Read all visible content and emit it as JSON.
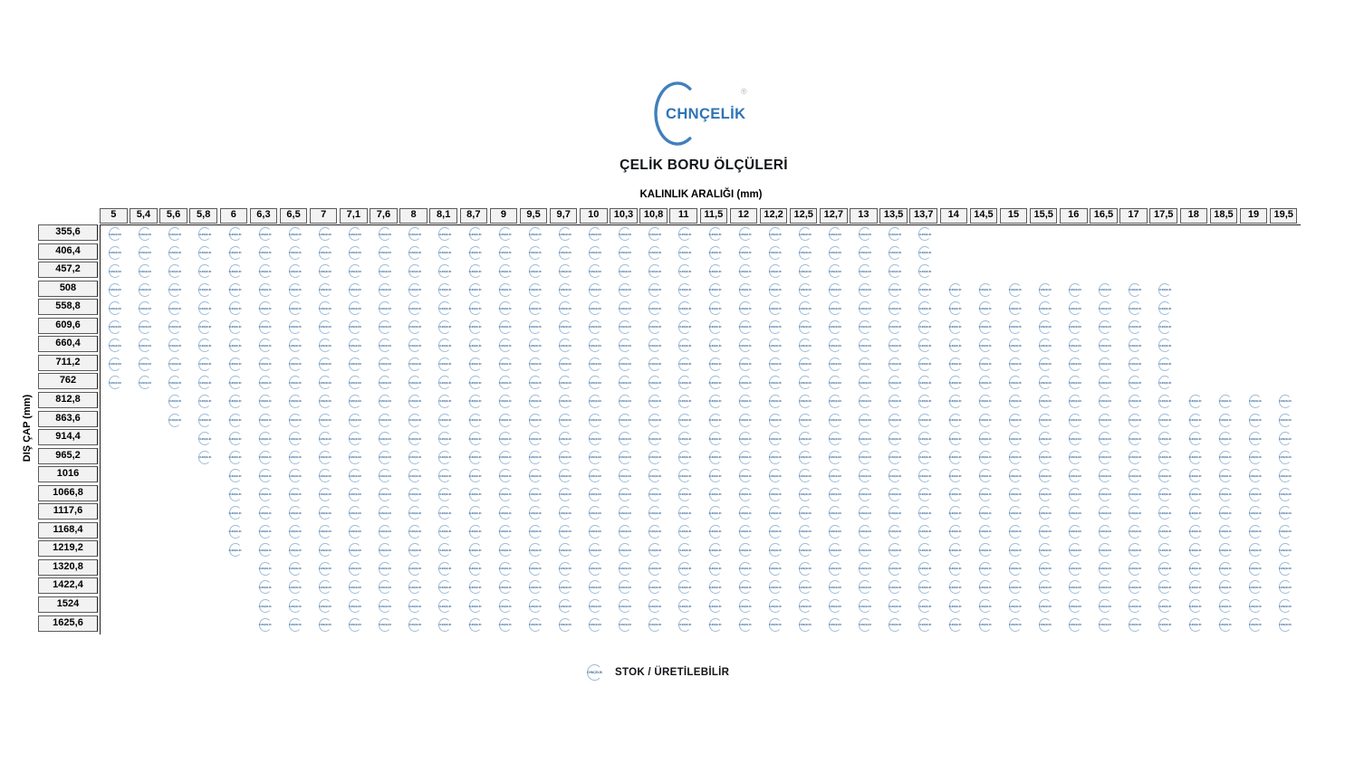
{
  "brand": {
    "logo_text": "CHNÇELİK",
    "registered_mark": "®"
  },
  "page_title": "ÇELİK BORU ÖLÇÜLERİ",
  "axes": {
    "column_axis_label": "KALINLIK ARALIĞI (mm)",
    "row_axis_label": "DIŞ ÇAP (mm)"
  },
  "legend": {
    "marker_text": "CHNÇELİK",
    "label": "STOK / ÜRETİLEBİLİR"
  },
  "colors": {
    "logo_blue": "#2e74b5",
    "arc_blue": "#4180bc",
    "marker_arc_blue": "#9dbbd7",
    "marker_text_blue": "#44729f",
    "header_bg": "#f2f2f2",
    "header_border": "#5a5a5a",
    "title_text": "#111418"
  },
  "chart_data": {
    "type": "table",
    "title": "ÇELİK BORU ÖLÇÜLERİ",
    "xlabel": "KALINLIK ARALIĞI (mm)",
    "ylabel": "DIŞ ÇAP (mm)",
    "legend_note": "marker = STOK / ÜRETİLEBİLİR",
    "columns": [
      "5",
      "5,4",
      "5,6",
      "5,8",
      "6",
      "6,3",
      "6,5",
      "7",
      "7,1",
      "7,6",
      "8",
      "8,1",
      "8,7",
      "9",
      "9,5",
      "9,7",
      "10",
      "10,3",
      "10,8",
      "11",
      "11,5",
      "12",
      "12,2",
      "12,5",
      "12,7",
      "13",
      "13,5",
      "13,7",
      "14",
      "14,5",
      "15",
      "15,5",
      "16",
      "16,5",
      "17",
      "17,5",
      "18",
      "18,5",
      "19",
      "19,5"
    ],
    "rows": [
      {
        "diameter": "355,6",
        "available_from": "5",
        "available_to": "13,7"
      },
      {
        "diameter": "406,4",
        "available_from": "5",
        "available_to": "13,7"
      },
      {
        "diameter": "457,2",
        "available_from": "5",
        "available_to": "13,7"
      },
      {
        "diameter": "508",
        "available_from": "5",
        "available_to": "17,5"
      },
      {
        "diameter": "558,8",
        "available_from": "5",
        "available_to": "17,5"
      },
      {
        "diameter": "609,6",
        "available_from": "5",
        "available_to": "17,5"
      },
      {
        "diameter": "660,4",
        "available_from": "5",
        "available_to": "17,5"
      },
      {
        "diameter": "711,2",
        "available_from": "5",
        "available_to": "17,5"
      },
      {
        "diameter": "762",
        "available_from": "5",
        "available_to": "17,5"
      },
      {
        "diameter": "812,8",
        "available_from": "5,6",
        "available_to": "19,5"
      },
      {
        "diameter": "863,6",
        "available_from": "5,6",
        "available_to": "19,5"
      },
      {
        "diameter": "914,4",
        "available_from": "5,8",
        "available_to": "19,5"
      },
      {
        "diameter": "965,2",
        "available_from": "5,8",
        "available_to": "19,5"
      },
      {
        "diameter": "1016",
        "available_from": "6",
        "available_to": "19,5"
      },
      {
        "diameter": "1066,8",
        "available_from": "6",
        "available_to": "19,5"
      },
      {
        "diameter": "1117,6",
        "available_from": "6",
        "available_to": "19,5"
      },
      {
        "diameter": "1168,4",
        "available_from": "6",
        "available_to": "19,5"
      },
      {
        "diameter": "1219,2",
        "available_from": "6",
        "available_to": "19,5"
      },
      {
        "diameter": "1320,8",
        "available_from": "6,3",
        "available_to": "19,5"
      },
      {
        "diameter": "1422,4",
        "available_from": "6,3",
        "available_to": "19,5"
      },
      {
        "diameter": "1524",
        "available_from": "6,3",
        "available_to": "19,5"
      },
      {
        "diameter": "1625,6",
        "available_from": "6,3",
        "available_to": "19,5"
      }
    ]
  }
}
